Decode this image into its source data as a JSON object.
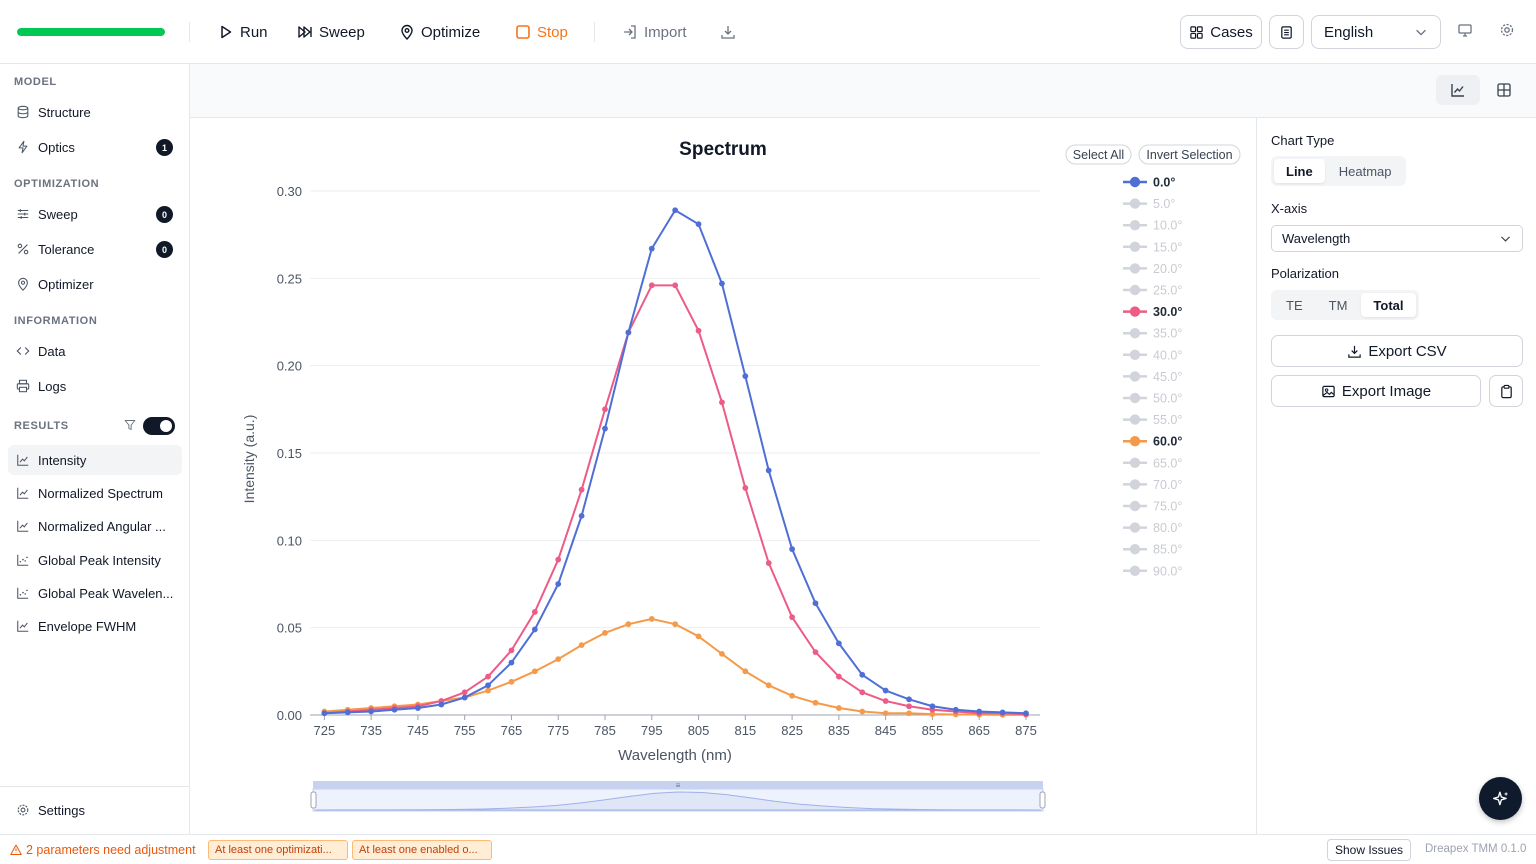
{
  "toolbar": {
    "progress": 1.0,
    "run_label": "Run",
    "sweep_label": "Sweep",
    "optimize_label": "Optimize",
    "stop_label": "Stop",
    "import_label": "Import",
    "cases_label": "Cases",
    "language": "English"
  },
  "sidebar": {
    "model_title": "MODEL",
    "model_items": [
      {
        "label": "Structure",
        "icon": "database-icon"
      },
      {
        "label": "Optics",
        "icon": "zap-icon",
        "badge": "1"
      }
    ],
    "optimization_title": "OPTIMIZATION",
    "optimization_items": [
      {
        "label": "Sweep",
        "icon": "sliders-icon",
        "badge": "0"
      },
      {
        "label": "Tolerance",
        "icon": "percent-icon",
        "badge": "0"
      },
      {
        "label": "Optimizer",
        "icon": "map-pin-icon"
      }
    ],
    "information_title": "INFORMATION",
    "information_items": [
      {
        "label": "Data",
        "icon": "code-icon"
      },
      {
        "label": "Logs",
        "icon": "printer-icon"
      }
    ],
    "results_title": "RESULTS",
    "results_items": [
      {
        "label": "Intensity",
        "icon": "line-chart-icon"
      },
      {
        "label": "Normalized Spectrum",
        "icon": "line-chart-icon"
      },
      {
        "label": "Normalized Angular ...",
        "icon": "line-chart-icon"
      },
      {
        "label": "Global Peak Intensity",
        "icon": "scatter-chart-icon"
      },
      {
        "label": "Global Peak Wavelen...",
        "icon": "scatter-chart-icon"
      },
      {
        "label": "Envelope FWHM",
        "icon": "line-chart-icon"
      }
    ],
    "settings_label": "Settings"
  },
  "legend_controls": {
    "select_all": "Select All",
    "invert_selection": "Invert Selection"
  },
  "chart_data": {
    "type": "line",
    "title": "Spectrum",
    "xlabel": "Wavelength (nm)",
    "ylabel": "Intensity (a.u.)",
    "xlim": [
      723,
      878
    ],
    "ylim": [
      0,
      0.3
    ],
    "x_ticks": [
      "725",
      "735",
      "745",
      "755",
      "765",
      "775",
      "785",
      "795",
      "805",
      "815",
      "825",
      "835",
      "845",
      "855",
      "865",
      "875"
    ],
    "y_ticks": [
      "0.00",
      "0.05",
      "0.10",
      "0.15",
      "0.20",
      "0.25",
      "0.30"
    ],
    "grid": true,
    "legend_position": "right",
    "x": [
      725,
      730,
      735,
      740,
      745,
      750,
      755,
      760,
      765,
      770,
      775,
      780,
      785,
      790,
      795,
      800,
      805,
      810,
      815,
      820,
      825,
      830,
      835,
      840,
      845,
      850,
      855,
      860,
      865,
      870,
      875
    ],
    "series": [
      {
        "name": "0.0°",
        "color": "#4f6fd6",
        "visible": true,
        "values": [
          0.001,
          0.0015,
          0.002,
          0.003,
          0.004,
          0.006,
          0.01,
          0.017,
          0.03,
          0.049,
          0.075,
          0.114,
          0.164,
          0.219,
          0.267,
          0.289,
          0.281,
          0.247,
          0.194,
          0.14,
          0.095,
          0.064,
          0.041,
          0.023,
          0.014,
          0.009,
          0.005,
          0.003,
          0.002,
          0.0015,
          0.001
        ]
      },
      {
        "name": "5.0°",
        "visible": false
      },
      {
        "name": "10.0°",
        "visible": false
      },
      {
        "name": "15.0°",
        "visible": false
      },
      {
        "name": "20.0°",
        "visible": false
      },
      {
        "name": "25.0°",
        "visible": false
      },
      {
        "name": "30.0°",
        "color": "#ec5c86",
        "visible": true,
        "values": [
          0.001,
          0.002,
          0.003,
          0.004,
          0.005,
          0.008,
          0.013,
          0.022,
          0.037,
          0.059,
          0.089,
          0.129,
          0.175,
          0.219,
          0.246,
          0.246,
          0.22,
          0.179,
          0.13,
          0.087,
          0.056,
          0.036,
          0.022,
          0.013,
          0.008,
          0.005,
          0.003,
          0.002,
          0.001,
          0.001,
          0.0005
        ]
      },
      {
        "name": "35.0°",
        "visible": false
      },
      {
        "name": "40.0°",
        "visible": false
      },
      {
        "name": "45.0°",
        "visible": false
      },
      {
        "name": "50.0°",
        "visible": false
      },
      {
        "name": "55.0°",
        "visible": false
      },
      {
        "name": "60.0°",
        "color": "#f59a4a",
        "visible": true,
        "values": [
          0.002,
          0.003,
          0.004,
          0.005,
          0.006,
          0.008,
          0.01,
          0.014,
          0.019,
          0.025,
          0.032,
          0.04,
          0.047,
          0.052,
          0.055,
          0.052,
          0.045,
          0.035,
          0.025,
          0.017,
          0.011,
          0.007,
          0.004,
          0.002,
          0.001,
          0.001,
          0.0005,
          0.0003,
          0.0002,
          0.0001,
          0.0001
        ]
      },
      {
        "name": "65.0°",
        "visible": false
      },
      {
        "name": "70.0°",
        "visible": false
      },
      {
        "name": "75.0°",
        "visible": false
      },
      {
        "name": "80.0°",
        "visible": false
      },
      {
        "name": "85.0°",
        "visible": false
      },
      {
        "name": "90.0°",
        "visible": false
      }
    ]
  },
  "right_panel": {
    "chart_type_label": "Chart Type",
    "chart_type_options": [
      "Line",
      "Heatmap"
    ],
    "chart_type_selected": "Line",
    "xaxis_label": "X-axis",
    "xaxis_value": "Wavelength",
    "polarization_label": "Polarization",
    "polarization_options": [
      "TE",
      "TM",
      "Total"
    ],
    "polarization_selected": "Total",
    "export_csv_label": "Export CSV",
    "export_image_label": "Export Image"
  },
  "statusbar": {
    "warning_text": "2 parameters need adjustment",
    "chip1": "At least one optimizati...",
    "chip2": "At least one enabled o...",
    "show_issues": "Show Issues",
    "version": "Dreapex TMM 0.1.0"
  },
  "colors": {
    "progress": "#00c853",
    "stop": "#f97316",
    "series_hidden": "#d1d5db"
  }
}
